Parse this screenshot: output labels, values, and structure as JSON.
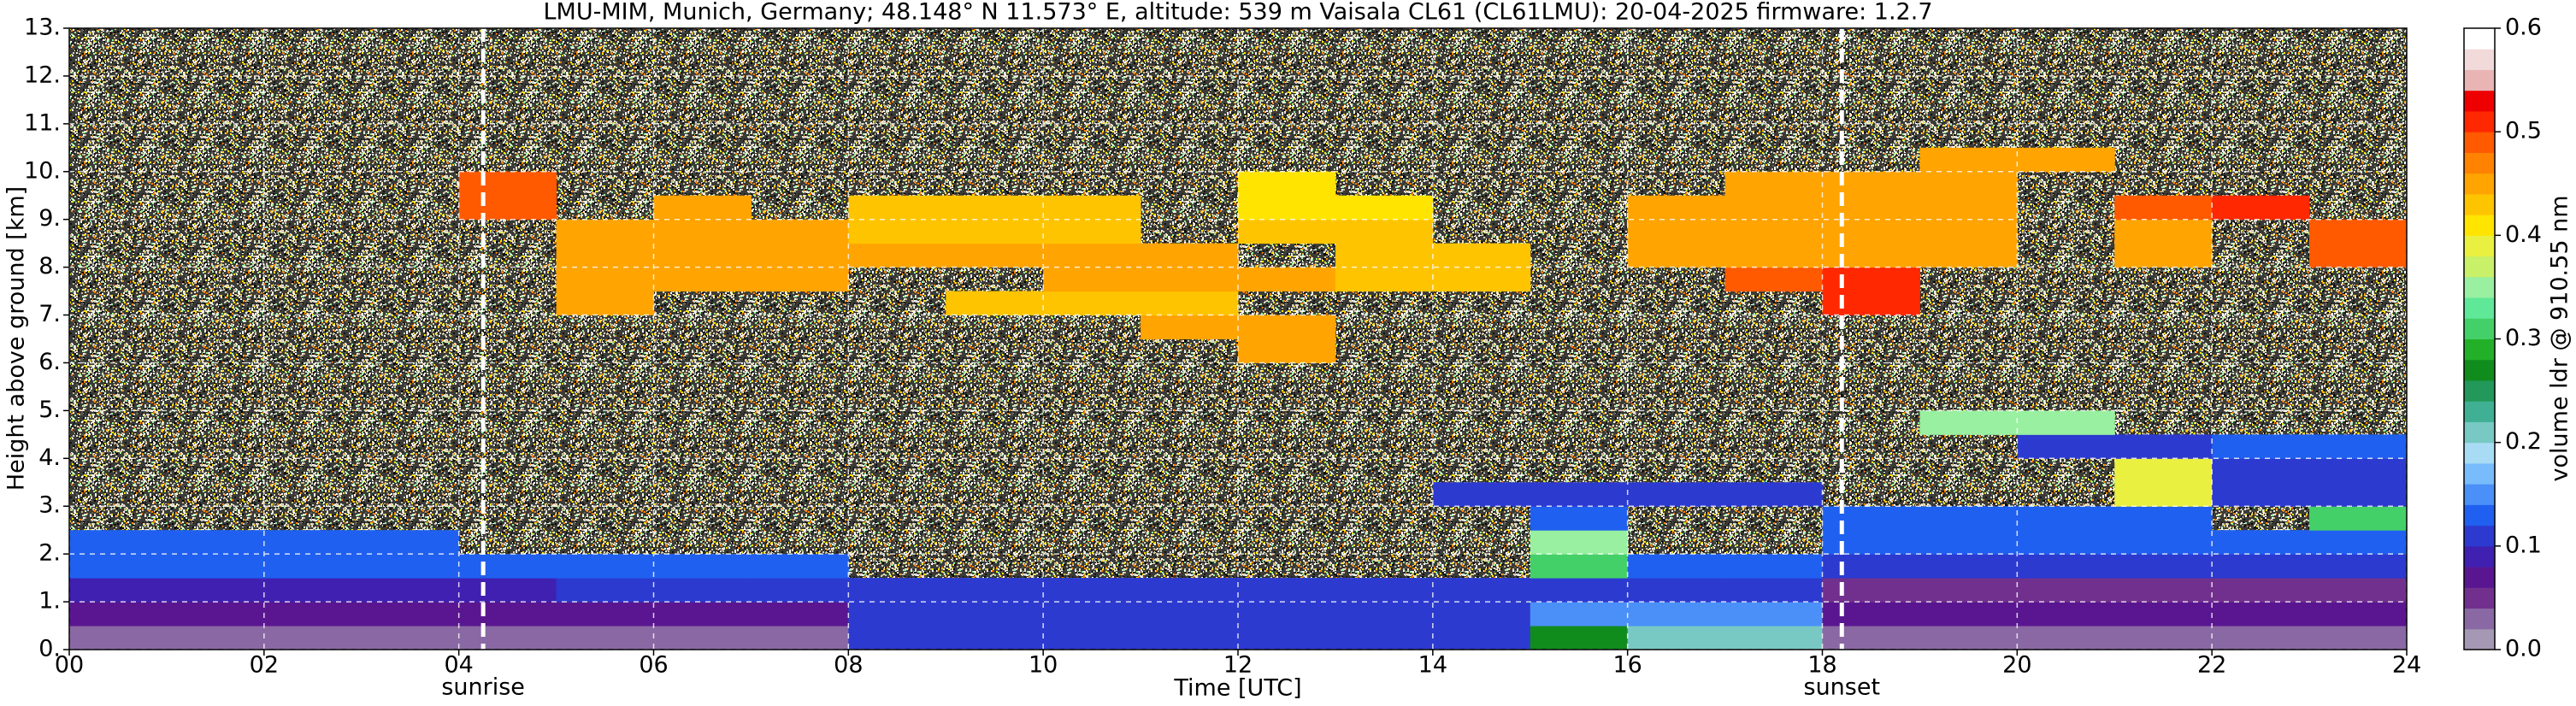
{
  "chart_data": {
    "type": "heatmap",
    "title": "LMU-MIM, Munich, Germany; 48.148° N 11.573° E, altitude: 539 m    Vaisala CL61 (CL61LMU): 20-04-2025    firmware: 1.2.7",
    "x_label": "Time [UTC]",
    "y_label": "Height above ground [km]",
    "colorbar_label": "volume ldr @ 910.55 nm",
    "x_bins": [
      0,
      1,
      2,
      3,
      4,
      5,
      6,
      7,
      8,
      9,
      10,
      11,
      12,
      13,
      14,
      15,
      16,
      17,
      18,
      19,
      20,
      21,
      22,
      23,
      24
    ],
    "y_bins": [
      0,
      0.5,
      1,
      1.5,
      2,
      2.5,
      3,
      3.5,
      4,
      4.5,
      5,
      5.5,
      6,
      6.5,
      7,
      7.5,
      8,
      8.5,
      9,
      9.5,
      10,
      10.5,
      11,
      11.5,
      12,
      12.5,
      13
    ],
    "values": [
      [
        0.03,
        0.03,
        0.03,
        0.03,
        0.03,
        0.03,
        0.03,
        0.03,
        0.1,
        0.1,
        0.1,
        0.1,
        0.1,
        0.1,
        0.1,
        0.27,
        0.2,
        0.2,
        0.03,
        0.03,
        0.03,
        0.03,
        0.03,
        0.03
      ],
      [
        0.07,
        0.07,
        0.07,
        0.07,
        0.07,
        0.07,
        0.07,
        0.07,
        0.1,
        0.1,
        0.1,
        0.1,
        0.1,
        0.1,
        0.1,
        0.15,
        0.15,
        0.15,
        0.06,
        0.06,
        0.06,
        0.06,
        0.06,
        0.06
      ],
      [
        0.09,
        0.09,
        0.09,
        0.09,
        0.09,
        0.11,
        0.11,
        0.11,
        0.11,
        0.11,
        0.11,
        0.11,
        0.11,
        0.11,
        0.11,
        0.1,
        0.1,
        0.1,
        0.05,
        0.05,
        0.05,
        0.05,
        0.05,
        0.05
      ],
      [
        0.12,
        0.12,
        0.12,
        0.12,
        0.12,
        0.12,
        0.12,
        0.12,
        null,
        null,
        null,
        null,
        null,
        null,
        null,
        0.3,
        0.12,
        0.12,
        0.1,
        0.1,
        0.1,
        0.1,
        0.1,
        0.1
      ],
      [
        0.13,
        0.13,
        0.13,
        0.13,
        null,
        null,
        null,
        null,
        null,
        null,
        null,
        null,
        null,
        null,
        null,
        0.35,
        null,
        null,
        0.12,
        0.12,
        0.12,
        0.12,
        0.12,
        0.12
      ],
      [
        null,
        null,
        null,
        null,
        null,
        null,
        null,
        null,
        null,
        null,
        null,
        null,
        null,
        null,
        null,
        0.12,
        null,
        null,
        0.12,
        0.12,
        0.12,
        0.12,
        null,
        0.3
      ],
      [
        null,
        null,
        null,
        null,
        null,
        null,
        null,
        null,
        null,
        null,
        null,
        null,
        null,
        null,
        0.1,
        0.1,
        0.1,
        0.1,
        null,
        null,
        null,
        0.38,
        0.1,
        0.1
      ],
      [
        null,
        null,
        null,
        null,
        null,
        null,
        null,
        null,
        null,
        null,
        null,
        null,
        null,
        null,
        null,
        null,
        null,
        null,
        null,
        null,
        null,
        0.38,
        0.1,
        0.1
      ],
      [
        null,
        null,
        null,
        null,
        null,
        null,
        null,
        null,
        null,
        null,
        null,
        null,
        null,
        null,
        null,
        null,
        null,
        null,
        null,
        null,
        0.1,
        0.1,
        0.12,
        0.12
      ],
      [
        null,
        null,
        null,
        null,
        null,
        null,
        null,
        null,
        null,
        null,
        null,
        null,
        null,
        null,
        null,
        null,
        null,
        null,
        null,
        0.35,
        0.35,
        null,
        null,
        null
      ],
      [
        null,
        null,
        null,
        null,
        null,
        null,
        null,
        null,
        null,
        null,
        null,
        null,
        null,
        null,
        null,
        null,
        null,
        null,
        null,
        null,
        null,
        null,
        null,
        null
      ],
      [
        null,
        null,
        null,
        null,
        null,
        null,
        null,
        null,
        null,
        null,
        null,
        null,
        null,
        null,
        null,
        null,
        null,
        null,
        null,
        null,
        null,
        null,
        null,
        null
      ],
      [
        null,
        null,
        null,
        null,
        null,
        null,
        null,
        null,
        null,
        null,
        null,
        null,
        0.45,
        null,
        null,
        null,
        null,
        null,
        null,
        null,
        null,
        null,
        null,
        null
      ],
      [
        null,
        null,
        null,
        null,
        null,
        null,
        null,
        null,
        null,
        null,
        null,
        0.45,
        0.45,
        null,
        null,
        null,
        null,
        null,
        null,
        null,
        null,
        null,
        null,
        null
      ],
      [
        null,
        null,
        null,
        null,
        null,
        0.45,
        null,
        null,
        null,
        0.42,
        0.42,
        0.42,
        null,
        null,
        null,
        null,
        null,
        null,
        0.5,
        null,
        null,
        null,
        null,
        null
      ],
      [
        null,
        null,
        null,
        null,
        null,
        0.45,
        0.45,
        0.45,
        null,
        null,
        0.45,
        0.45,
        0.45,
        0.42,
        0.42,
        null,
        null,
        0.48,
        0.5,
        null,
        null,
        null,
        null,
        null
      ],
      [
        null,
        null,
        null,
        null,
        null,
        0.45,
        0.45,
        0.45,
        0.45,
        0.45,
        0.45,
        0.45,
        null,
        0.42,
        0.42,
        null,
        0.45,
        0.45,
        0.45,
        0.45,
        null,
        0.45,
        null,
        0.48
      ],
      [
        null,
        null,
        null,
        null,
        null,
        0.45,
        0.45,
        0.45,
        0.42,
        0.42,
        0.42,
        null,
        0.42,
        0.42,
        null,
        null,
        0.45,
        0.45,
        0.45,
        0.45,
        null,
        0.45,
        null,
        0.48
      ],
      [
        null,
        null,
        null,
        null,
        0.48,
        null,
        0.45,
        null,
        0.42,
        0.42,
        0.42,
        null,
        0.4,
        0.4,
        null,
        null,
        0.45,
        0.45,
        0.45,
        0.45,
        null,
        0.48,
        0.5,
        null
      ],
      [
        null,
        null,
        null,
        null,
        0.48,
        null,
        null,
        null,
        null,
        null,
        null,
        null,
        0.4,
        null,
        null,
        null,
        null,
        0.45,
        0.45,
        0.45,
        null,
        null,
        null,
        null
      ],
      [
        null,
        null,
        null,
        null,
        null,
        null,
        null,
        null,
        null,
        null,
        null,
        null,
        null,
        null,
        null,
        null,
        null,
        null,
        null,
        0.45,
        0.45,
        null,
        null,
        null
      ],
      [
        null,
        null,
        null,
        null,
        null,
        null,
        null,
        null,
        null,
        null,
        null,
        null,
        null,
        null,
        null,
        null,
        null,
        null,
        null,
        null,
        null,
        null,
        null,
        null
      ],
      [
        null,
        null,
        null,
        null,
        null,
        null,
        null,
        null,
        null,
        null,
        null,
        null,
        null,
        null,
        null,
        null,
        null,
        null,
        null,
        null,
        null,
        null,
        null,
        null
      ],
      [
        null,
        null,
        null,
        null,
        null,
        null,
        null,
        null,
        null,
        null,
        null,
        null,
        null,
        null,
        null,
        null,
        null,
        null,
        null,
        null,
        null,
        null,
        null,
        null
      ],
      [
        null,
        null,
        null,
        null,
        null,
        null,
        null,
        null,
        null,
        null,
        null,
        null,
        null,
        null,
        null,
        null,
        null,
        null,
        null,
        null,
        null,
        null,
        null,
        null
      ],
      [
        null,
        null,
        null,
        null,
        null,
        null,
        null,
        null,
        null,
        null,
        null,
        null,
        null,
        null,
        null,
        null,
        null,
        null,
        null,
        null,
        null,
        null,
        null,
        null
      ]
    ],
    "xlim": [
      0,
      24
    ],
    "xticks": [
      {
        "value": 0,
        "label": "00"
      },
      {
        "value": 2,
        "label": "02"
      },
      {
        "value": 4,
        "label": "04"
      },
      {
        "value": 6,
        "label": "06"
      },
      {
        "value": 8,
        "label": "08"
      },
      10,
      12,
      14,
      16,
      18,
      20,
      22,
      24
    ],
    "ylim": [
      0,
      13
    ],
    "yticks": [
      {
        "value": 0,
        "label": "0."
      },
      {
        "value": 1,
        "label": "1."
      },
      {
        "value": 2,
        "label": "2."
      },
      {
        "value": 3,
        "label": "3."
      },
      {
        "value": 4,
        "label": "4."
      },
      {
        "value": 5,
        "label": "5."
      },
      {
        "value": 6,
        "label": "6."
      },
      {
        "value": 7,
        "label": "7."
      },
      {
        "value": 8,
        "label": "8."
      },
      {
        "value": 9,
        "label": "9."
      },
      {
        "value": 10,
        "label": "10."
      },
      {
        "value": 11,
        "label": "11."
      },
      {
        "value": 12,
        "label": "12."
      },
      {
        "value": 13,
        "label": "13."
      }
    ],
    "clim": [
      0,
      0.6
    ],
    "cticks": [
      {
        "value": 0,
        "label": "0.0"
      },
      0.1,
      0.2,
      0.3,
      0.4,
      0.5,
      0.6
    ],
    "colormap": [
      "#a598b4",
      "#8a68a4",
      "#72308e",
      "#5a1690",
      "#4020b0",
      "#2c3ad0",
      "#2060f0",
      "#4a90f8",
      "#78bcfc",
      "#a8dcf4",
      "#78c8c4",
      "#40b094",
      "#22985a",
      "#108c1c",
      "#22b028",
      "#44d068",
      "#5ee898",
      "#98f0a0",
      "#c8f068",
      "#eaf040",
      "#ffe400",
      "#ffc400",
      "#ffa400",
      "#ff8200",
      "#ff5a00",
      "#ff2800",
      "#ee0000",
      "#e8b4b4",
      "#f2dada",
      "#ffffff"
    ],
    "grid": true,
    "annotations": [
      {
        "label": "sunrise",
        "x": 4.25
      },
      {
        "label": "sunset",
        "x": 18.2
      }
    ]
  }
}
